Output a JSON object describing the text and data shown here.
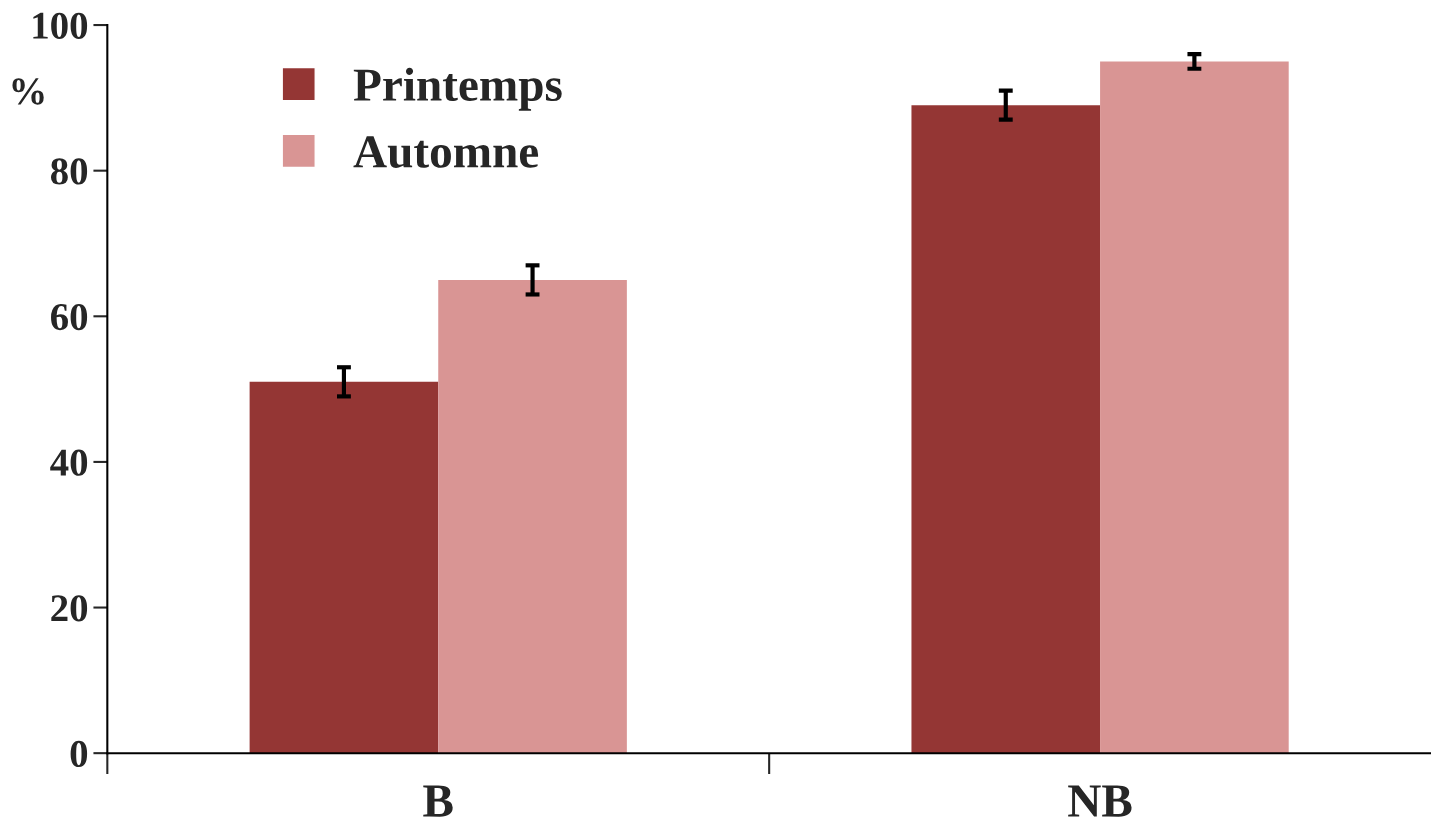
{
  "chart_data": {
    "type": "bar",
    "ylabel": "%",
    "categories": [
      "B",
      "NB"
    ],
    "series": [
      {
        "name": "Printemps",
        "color": "#943634",
        "values": [
          51,
          89
        ],
        "errors": [
          2,
          2
        ]
      },
      {
        "name": "Automne",
        "color": "#d99594",
        "values": [
          65,
          95
        ],
        "errors": [
          2,
          1
        ]
      }
    ],
    "ylim": [
      0,
      100
    ],
    "yticks": [
      0,
      20,
      40,
      60,
      80,
      100
    ],
    "grid": false,
    "legend": "top left"
  }
}
